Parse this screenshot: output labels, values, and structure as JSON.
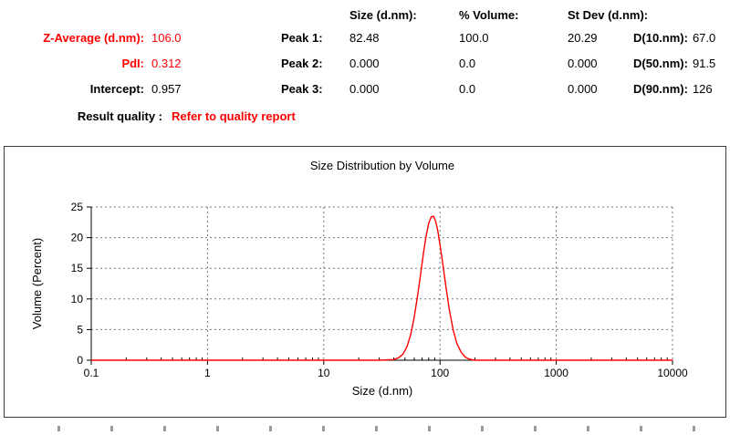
{
  "colors": {
    "accent_red": "#ff0000",
    "curve_red": "#ff0000",
    "axis_black": "#000000",
    "grid_gray": "#777777"
  },
  "table": {
    "col_headers": [
      "Size (d.nm):",
      "% Volume:",
      "St Dev (d.nm):"
    ],
    "rows": [
      {
        "label": "Z-Average (d.nm):",
        "value": "106.0",
        "peak": "Peak 1:",
        "size": "82.48",
        "volume": "100.0",
        "stdev": "20.29",
        "d_label": "D(10.nm):",
        "d_value": "67.0"
      },
      {
        "label": "PdI:",
        "value": "0.312",
        "peak": "Peak 2:",
        "size": "0.000",
        "volume": "0.0",
        "stdev": "0.000",
        "d_label": "D(50.nm):",
        "d_value": "91.5"
      },
      {
        "label": "Intercept:",
        "value": "0.957",
        "peak": "Peak 3:",
        "size": "0.000",
        "volume": "0.0",
        "stdev": "0.000",
        "d_label": "D(90.nm):",
        "d_value": "126"
      }
    ],
    "result_quality_label": "Result quality :",
    "result_quality_value": "Refer to quality report"
  },
  "chart_data": {
    "type": "line",
    "title": "Size Distribution by Volume",
    "xlabel": "Size (d.nm)",
    "ylabel": "Volume (Percent)",
    "x_scale": "log",
    "xlim": [
      0.1,
      10000
    ],
    "ylim": [
      0,
      25
    ],
    "x_ticks": [
      0.1,
      1,
      10,
      100,
      1000,
      10000
    ],
    "x_tick_labels": [
      "0.1",
      "1",
      "10",
      "100",
      "1000",
      "10000"
    ],
    "y_ticks": [
      0,
      5,
      10,
      15,
      20,
      25
    ],
    "grid": "dashed",
    "legend": "none",
    "series": [
      {
        "name": "volume-distribution",
        "color": "#ff0000",
        "x": [
          0.1,
          10,
          30,
          40,
          44,
          48,
          52,
          56,
          60,
          64,
          68,
          72,
          76,
          80,
          84,
          88,
          92,
          96,
          100,
          106,
          112,
          120,
          130,
          140,
          152,
          165,
          180,
          200,
          220,
          10000
        ],
        "y": [
          0,
          0,
          0,
          0.1,
          0.4,
          1.0,
          2.2,
          4.2,
          7.0,
          10.4,
          14.0,
          17.4,
          20.3,
          22.4,
          23.4,
          23.5,
          22.6,
          21.0,
          18.8,
          15.6,
          12.2,
          8.3,
          4.9,
          2.7,
          1.3,
          0.5,
          0.15,
          0,
          0,
          0
        ]
      }
    ]
  }
}
